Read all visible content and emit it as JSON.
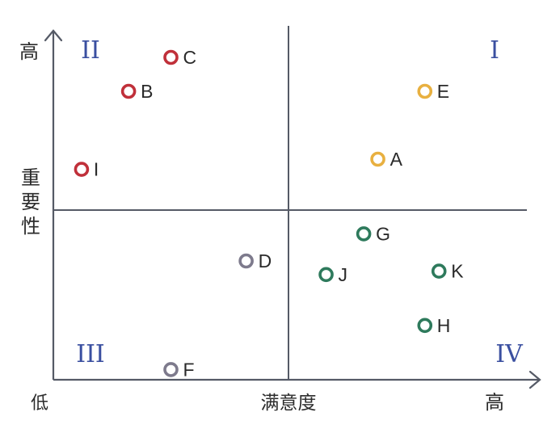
{
  "chart_data": {
    "type": "scatter",
    "title": "",
    "xlabel": "满意度",
    "ylabel": "重要性",
    "x_low_label": "低",
    "x_high_label": "高",
    "y_high_label": "高",
    "xlim": [
      0,
      10
    ],
    "ylim": [
      0,
      10
    ],
    "divider": {
      "x": 5,
      "y": 5
    },
    "quadrants": [
      {
        "label": "I",
        "position": "top-right"
      },
      {
        "label": "II",
        "position": "top-left"
      },
      {
        "label": "III",
        "position": "bottom-left"
      },
      {
        "label": "IV",
        "position": "bottom-right"
      }
    ],
    "points": [
      {
        "label": "A",
        "x": 6.9,
        "y": 6.5,
        "color": "#e8b040"
      },
      {
        "label": "B",
        "x": 1.6,
        "y": 8.5,
        "color": "#c0303a"
      },
      {
        "label": "C",
        "x": 2.5,
        "y": 9.5,
        "color": "#c0303a"
      },
      {
        "label": "D",
        "x": 4.1,
        "y": 3.5,
        "color": "#7d7a8c"
      },
      {
        "label": "E",
        "x": 7.9,
        "y": 8.5,
        "color": "#e8b040"
      },
      {
        "label": "F",
        "x": 2.5,
        "y": 0.3,
        "color": "#7d7a8c"
      },
      {
        "label": "G",
        "x": 6.6,
        "y": 4.3,
        "color": "#2e7a5c"
      },
      {
        "label": "H",
        "x": 7.9,
        "y": 1.6,
        "color": "#2e7a5c"
      },
      {
        "label": "I",
        "x": 0.6,
        "y": 6.2,
        "color": "#c0303a"
      },
      {
        "label": "J",
        "x": 5.8,
        "y": 3.1,
        "color": "#2e7a5c"
      },
      {
        "label": "K",
        "x": 8.2,
        "y": 3.2,
        "color": "#2e7a5c"
      }
    ],
    "colors": {
      "axis": "#555a66",
      "quadrant_label": "#3a4fa0"
    }
  }
}
